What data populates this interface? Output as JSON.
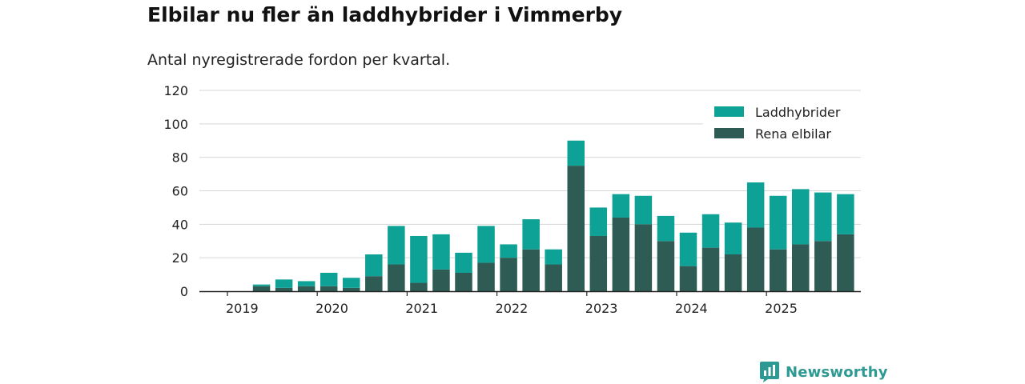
{
  "title": "Elbilar nu fler än laddhybrider i Vimmerby",
  "subtitle": "Antal nyregistrerade fordon per kvartal.",
  "brand": "Newsworthy",
  "colors": {
    "phev": "#0ea196",
    "bev": "#2e5c55",
    "brand": "#2c9a92"
  },
  "chart_data": {
    "type": "bar",
    "stacked": true,
    "title": "Elbilar nu fler än laddhybrider i Vimmerby",
    "subtitle": "Antal nyregistrerade fordon per kvartal.",
    "xlabel": "",
    "ylabel": "",
    "ylim": [
      0,
      120
    ],
    "yticks": [
      0,
      20,
      40,
      60,
      80,
      100,
      120
    ],
    "year_ticks": [
      "2019",
      "2020",
      "2021",
      "2022",
      "2023",
      "2024",
      "2025"
    ],
    "first_year": 2019,
    "categories": [
      "2019 Q1",
      "2019 Q2",
      "2019 Q3",
      "2019 Q4",
      "2020 Q1",
      "2020 Q2",
      "2020 Q3",
      "2020 Q4",
      "2021 Q1",
      "2021 Q2",
      "2021 Q3",
      "2021 Q4",
      "2022 Q1",
      "2022 Q2",
      "2022 Q3",
      "2022 Q4",
      "2023 Q1",
      "2023 Q2",
      "2023 Q3",
      "2023 Q4",
      "2024 Q1",
      "2024 Q2",
      "2024 Q3",
      "2024 Q4",
      "2025 Q1",
      "2025 Q2",
      "2025 Q3",
      "2025 Q4"
    ],
    "series": [
      {
        "name": "Rena elbilar",
        "color": "#2e5c55",
        "values": [
          0,
          3,
          2,
          3,
          3,
          2,
          9,
          16,
          5,
          13,
          11,
          17,
          20,
          25,
          16,
          75,
          33,
          44,
          40,
          30,
          15,
          26,
          22,
          38,
          25,
          28,
          30,
          34
        ]
      },
      {
        "name": "Laddhybrider",
        "color": "#0ea196",
        "values": [
          0,
          1,
          5,
          3,
          8,
          6,
          13,
          23,
          28,
          21,
          12,
          22,
          8,
          18,
          9,
          15,
          17,
          14,
          17,
          15,
          20,
          20,
          19,
          27,
          32,
          33,
          29,
          24
        ]
      }
    ],
    "legend": {
      "position": "top-right",
      "order": [
        "Laddhybrider",
        "Rena elbilar"
      ]
    },
    "grid": true
  }
}
